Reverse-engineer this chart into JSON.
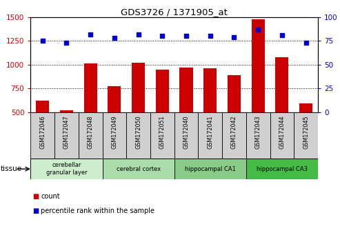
{
  "title": "GDS3726 / 1371905_at",
  "samples": [
    "GSM172046",
    "GSM172047",
    "GSM172048",
    "GSM172049",
    "GSM172050",
    "GSM172051",
    "GSM172040",
    "GSM172041",
    "GSM172042",
    "GSM172043",
    "GSM172044",
    "GSM172045"
  ],
  "counts": [
    620,
    520,
    1010,
    775,
    1020,
    950,
    970,
    960,
    890,
    1480,
    1080,
    590
  ],
  "percentiles": [
    75,
    73,
    82,
    78,
    82,
    80,
    80,
    80,
    79,
    87,
    81,
    73
  ],
  "ylim_left": [
    500,
    1500
  ],
  "ylim_right": [
    0,
    100
  ],
  "yticks_left": [
    500,
    750,
    1000,
    1250,
    1500
  ],
  "yticks_right": [
    0,
    25,
    50,
    75,
    100
  ],
  "bar_color": "#cc0000",
  "dot_color": "#0000cc",
  "tissue_groups": [
    {
      "label": "cerebellar\ngranular layer",
      "start": 0,
      "end": 3,
      "color": "#cceecc"
    },
    {
      "label": "cerebral cortex",
      "start": 3,
      "end": 6,
      "color": "#aaddaa"
    },
    {
      "label": "hippocampal CA1",
      "start": 6,
      "end": 9,
      "color": "#88cc88"
    },
    {
      "label": "hippocampal CA3",
      "start": 9,
      "end": 12,
      "color": "#44bb44"
    }
  ],
  "tissue_label": "tissue",
  "legend_count_label": "count",
  "legend_pct_label": "percentile rank within the sample",
  "bar_width": 0.55,
  "xlabel_color": "#cc0000",
  "ylabel_right_color": "#0000cc"
}
